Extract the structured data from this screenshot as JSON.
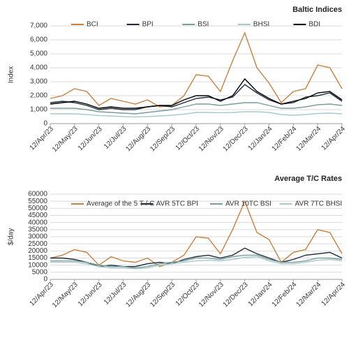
{
  "chart_data": [
    {
      "type": "line",
      "title": "Baltic Indices",
      "y_label": "Index",
      "x": [
        "12/Apr/23",
        "27/Apr/23",
        "12/May/23",
        "27/May/23",
        "12/Jun/23",
        "27/Jun/23",
        "12/Jul/23",
        "27/Jul/23",
        "12/Aug/23",
        "27/Aug/23",
        "12/Sep/23",
        "27/Sep/23",
        "12/Oct/23",
        "27/Oct/23",
        "12/Nov/23",
        "27/Nov/23",
        "12/Dec/23",
        "27/Dec/23",
        "12/Jan/24",
        "27/Jan/24",
        "12/Feb/24",
        "27/Feb/24",
        "12/Mar/24",
        "27/Mar/24",
        "12/Apr/24"
      ],
      "xticks": [
        "12/Apr/23",
        "12/May/23",
        "12/Jun/23",
        "12/Jul/23",
        "12/Aug/23",
        "12/Sep/23",
        "12/Oct/23",
        "12/Nov/23",
        "12/Dec/23",
        "12/Jan/24",
        "12/Feb/24",
        "12/Mar/24",
        "12/Apr/24"
      ],
      "ylim": [
        0,
        7000
      ],
      "yticks": [
        0,
        {
          "value": 1000,
          "label": "1,000"
        },
        {
          "value": 2000,
          "label": "2,000"
        },
        {
          "value": 3000,
          "label": "3,000"
        },
        {
          "value": 4000,
          "label": "4,000"
        },
        {
          "value": 5000,
          "label": "5,000"
        },
        {
          "value": 6000,
          "label": "6,000"
        },
        {
          "value": 7000,
          "label": "7,000"
        }
      ],
      "grid": true,
      "legend": "top",
      "series": [
        {
          "name": "BCI",
          "color": "#c8803e",
          "values": [
            1800,
            2000,
            2500,
            2300,
            1300,
            1800,
            1600,
            1400,
            1700,
            1200,
            1300,
            2000,
            3500,
            3400,
            2300,
            4500,
            6500,
            4000,
            2900,
            1500,
            2300,
            2500,
            4200,
            4000,
            2500
          ]
        },
        {
          "name": "BPI",
          "color": "#1b2b3b",
          "values": [
            1500,
            1600,
            1500,
            1300,
            1000,
            1100,
            1000,
            1000,
            1200,
            1300,
            1200,
            1500,
            1800,
            1900,
            1700,
            1900,
            2800,
            2200,
            1700,
            1400,
            1500,
            1900,
            2000,
            2200,
            1600
          ]
        },
        {
          "name": "BSI",
          "color": "#7d9c9c",
          "values": [
            1100,
            1100,
            1100,
            1000,
            850,
            800,
            750,
            700,
            800,
            900,
            1000,
            1200,
            1400,
            1400,
            1300,
            1400,
            1500,
            1500,
            1300,
            1100,
            1100,
            1200,
            1350,
            1400,
            1300
          ]
        },
        {
          "name": "BHSI",
          "color": "#a6c9cc",
          "values": [
            700,
            700,
            700,
            650,
            580,
            550,
            500,
            480,
            500,
            550,
            600,
            680,
            800,
            800,
            780,
            800,
            850,
            850,
            800,
            650,
            600,
            650,
            720,
            750,
            700
          ]
        },
        {
          "name": "BDI",
          "color": "#000000",
          "values": [
            1400,
            1500,
            1600,
            1400,
            1100,
            1200,
            1100,
            1100,
            1200,
            1300,
            1300,
            1700,
            2000,
            2000,
            1600,
            2000,
            3200,
            2300,
            1800,
            1400,
            1600,
            1800,
            2200,
            2300,
            1700
          ]
        }
      ]
    },
    {
      "type": "line",
      "title": "Average T/C Rates",
      "y_label": "$/day",
      "x": [
        "12/Apr/23",
        "27/Apr/23",
        "12/May/23",
        "27/May/23",
        "12/Jun/23",
        "27/Jun/23",
        "12/Jul/23",
        "27/Jul/23",
        "12/Aug/23",
        "27/Aug/23",
        "12/Sep/23",
        "27/Sep/23",
        "12/Oct/23",
        "27/Oct/23",
        "12/Nov/23",
        "27/Nov/23",
        "12/Dec/23",
        "27/Dec/23",
        "12/Jan/24",
        "27/Jan/24",
        "12/Feb/24",
        "27/Feb/24",
        "12/Mar/24",
        "27/Mar/24",
        "12/Apr/24"
      ],
      "xticks": [
        "12/Apr/23",
        "12/May/23",
        "12/Jun/23",
        "12/Jul/23",
        "12/Aug/23",
        "12/Sep/23",
        "12/Oct/23",
        "12/Nov/23",
        "12/Dec/23",
        "12/Jan/24",
        "12/Feb/24",
        "12/Mar/24",
        "12/Apr/24"
      ],
      "ylim": [
        0,
        60000
      ],
      "yticks": [
        0,
        5000,
        10000,
        15000,
        20000,
        25000,
        30000,
        35000,
        40000,
        45000,
        50000,
        55000,
        60000
      ],
      "grid": true,
      "legend": "top",
      "series": [
        {
          "name": "Average of the 5 T / C",
          "color": "#c8803e",
          "values": [
            15000,
            17000,
            21000,
            19000,
            10000,
            16000,
            13000,
            12000,
            15000,
            9000,
            12000,
            17000,
            30000,
            29000,
            18000,
            35000,
            55000,
            33000,
            28000,
            12000,
            19000,
            21000,
            35000,
            33000,
            18000
          ]
        },
        {
          "name": "AVR 5TC BPI",
          "color": "#1b2b3b",
          "values": [
            15000,
            15000,
            14000,
            12000,
            9000,
            10000,
            9000,
            9000,
            11000,
            12000,
            11000,
            14000,
            16000,
            17000,
            15000,
            17000,
            22000,
            18000,
            15000,
            12000,
            14000,
            17000,
            18000,
            19000,
            15000
          ]
        },
        {
          "name": "AVR 10TC BSI",
          "color": "#7d9c9c",
          "values": [
            13000,
            13000,
            13000,
            12000,
            10000,
            9000,
            9000,
            8000,
            9000,
            11000,
            12000,
            13000,
            15000,
            15000,
            14000,
            16000,
            17000,
            17000,
            14000,
            12000,
            12000,
            13000,
            15000,
            15000,
            14000
          ]
        },
        {
          "name": "AVR 7TC BHSI",
          "color": "#a6c9cc",
          "values": [
            12000,
            12000,
            12000,
            11000,
            9000,
            8000,
            8000,
            7500,
            8000,
            10000,
            11000,
            12000,
            13000,
            13500,
            13000,
            14000,
            15500,
            16000,
            13000,
            11000,
            11000,
            12000,
            13500,
            14000,
            13000
          ]
        }
      ]
    }
  ]
}
